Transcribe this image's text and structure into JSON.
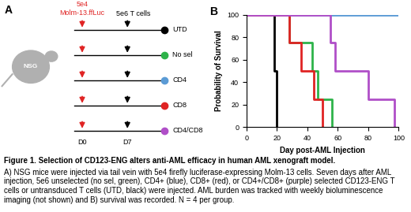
{
  "panel_a": {
    "label": "A",
    "mouse": "NSG",
    "injection_1": {
      "dose": "5e4",
      "cells": "Molm-13.ffLuc",
      "day": "D0"
    },
    "injection_2": {
      "cells": "5e6 T cells",
      "day": "D7"
    }
  },
  "chart_data": {
    "type": "step",
    "title": "B",
    "x_label": "Day post-AML Injection",
    "y_label": "Probability of Survival",
    "xlim": [
      0,
      100
    ],
    "ylim": [
      0,
      100
    ],
    "xticks": [
      0,
      20,
      40,
      60,
      80,
      100
    ],
    "yticks": [
      0,
      20,
      40,
      60,
      80,
      100
    ],
    "series": [
      {
        "name": "UTD",
        "color": "#000000",
        "x": [
          0,
          18,
          20
        ],
        "values": [
          100,
          50,
          0
        ]
      },
      {
        "name": "No sel",
        "color": "#2eb34a",
        "x": [
          0,
          28,
          43,
          47,
          56
        ],
        "values": [
          100,
          75,
          50,
          25,
          0
        ]
      },
      {
        "name": "CD4",
        "color": "#5b9bd5",
        "x": [
          0,
          100
        ],
        "values": [
          100,
          100
        ]
      },
      {
        "name": "CD8",
        "color": "#e02424",
        "x": [
          0,
          28,
          36,
          44,
          50
        ],
        "values": [
          100,
          75,
          50,
          25,
          0
        ]
      },
      {
        "name": "CD4/CD8",
        "color": "#b04fc8",
        "x": [
          0,
          55,
          58,
          80,
          97
        ],
        "values": [
          100,
          75,
          50,
          25,
          0
        ]
      }
    ]
  },
  "caption": {
    "title": "Figure 1. Selection of CD123-ENG alters anti-AML efficacy in human AML xenograft model.",
    "text": "A) NSG mice were injected via tail vein with 5e4 firefly luciferase-expressing Molm-13 cells. Seven days after AML injection, 5e6 unselected (no sel, green), CD4+ (blue), CD8+ (red), or CD4+/CD8+ (purple) selected CD123-ENG T cells or untransduced T cells (UTD, black) were injected. AML burden was tracked with weekly bioluminescence imaging (not shown) and B) survival was recorded. N = 4 per group."
  }
}
